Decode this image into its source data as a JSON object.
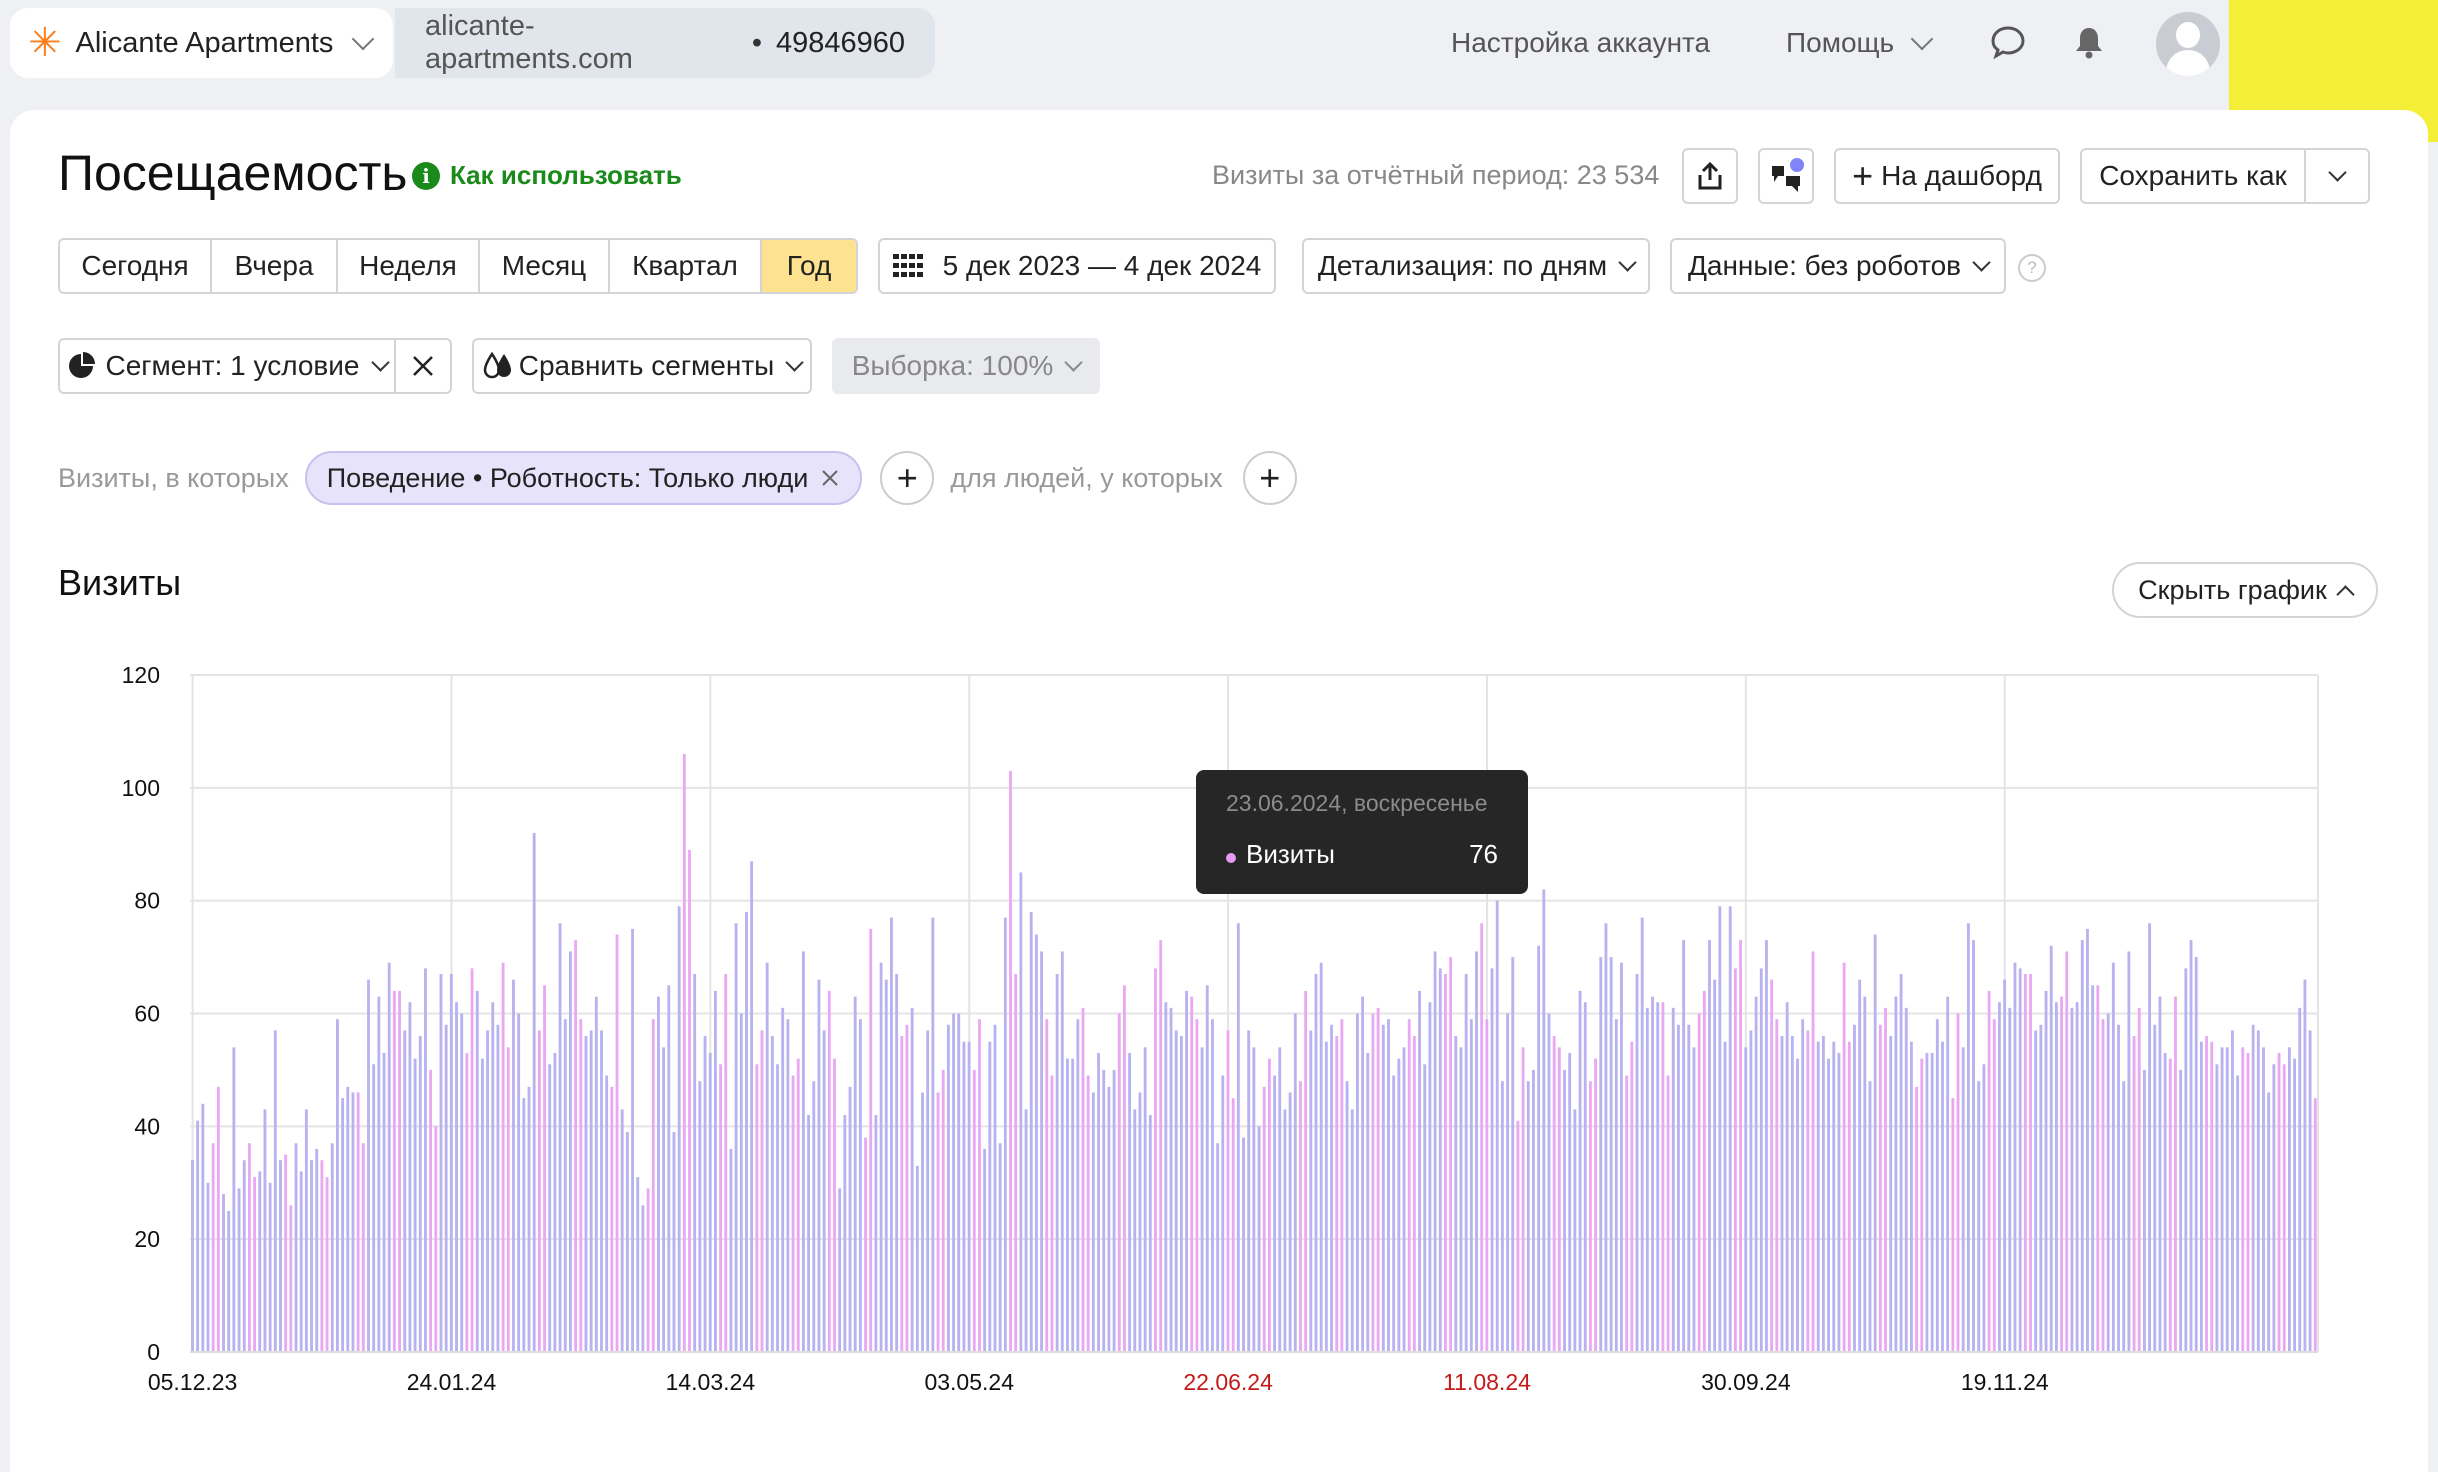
{
  "header": {
    "site_name": "Alicante Apartments",
    "site_domain": "alicante-apartments.com",
    "separator": "•",
    "counter_id": "49846960",
    "account_settings": "Настройка аккаунта",
    "help": "Помощь"
  },
  "page": {
    "title": "Посещаемость",
    "howto": "Как использовать",
    "howto_icon": "i",
    "visits_total": "Визиты за отчётный период: 23 534",
    "to_dashboard": "На дашборд",
    "save_as": "Сохранить как"
  },
  "periods": [
    {
      "label": "Сегодня",
      "active": false
    },
    {
      "label": "Вчера",
      "active": false
    },
    {
      "label": "Неделя",
      "active": false
    },
    {
      "label": "Месяц",
      "active": false
    },
    {
      "label": "Квартал",
      "active": false
    },
    {
      "label": "Год",
      "active": true
    }
  ],
  "filters": {
    "date_range": "5 дек 2023 — 4 дек 2024",
    "detail": "Детализация: по дням",
    "data": "Данные: без роботов",
    "help_mark": "?",
    "segment": "Сегмент: 1 условие",
    "compare": "Сравнить сегменты",
    "sample": "Выборка: 100%"
  },
  "conditions": {
    "prefix": "Визиты, в которых",
    "chip": "Поведение • Роботность: Только люди",
    "people_prefix": "для людей, у которых"
  },
  "section": {
    "title": "Визиты",
    "hide_chart": "Скрыть график"
  },
  "tooltip": {
    "date": "23.06.2024, воскресенье",
    "metric": "Визиты",
    "value": "76"
  },
  "colors": {
    "weekday_bar": "#b8b2f0",
    "weekend_bar": "#eaa8f2",
    "accent_yellow": "#fde38f",
    "weekend_tick": "#c41a1a"
  },
  "chart_data": {
    "type": "bar",
    "title": "Визиты",
    "x_start": "05.12.23",
    "x_end": "03.12.24",
    "x_tick_labels": [
      "05.12.23",
      "24.01.24",
      "14.03.24",
      "03.05.24",
      "22.06.24",
      "11.08.24",
      "30.09.24",
      "19.11.24"
    ],
    "weekend_tick_labels": [
      "22.06.24",
      "11.08.24"
    ],
    "ylim": [
      0,
      120
    ],
    "y_ticks": [
      0,
      20,
      40,
      60,
      80,
      100,
      120
    ],
    "series": [
      {
        "name": "Визиты",
        "values": [
          34,
          41,
          44,
          30,
          37,
          47,
          28,
          25,
          54,
          29,
          34,
          37,
          31,
          32,
          43,
          30,
          57,
          34,
          35,
          26,
          37,
          32,
          43,
          34,
          36,
          34,
          31,
          37,
          59,
          45,
          47,
          46,
          46,
          37,
          66,
          51,
          63,
          53,
          69,
          64,
          64,
          57,
          62,
          52,
          56,
          68,
          50,
          40,
          67,
          58,
          67,
          62,
          60,
          53,
          68,
          64,
          52,
          57,
          62,
          58,
          69,
          54,
          66,
          60,
          45,
          47,
          92,
          57,
          65,
          51,
          53,
          76,
          59,
          71,
          73,
          59,
          56,
          57,
          63,
          57,
          49,
          47,
          74,
          43,
          39,
          75,
          31,
          26,
          29,
          59,
          63,
          54,
          65,
          39,
          79,
          106,
          89,
          67,
          48,
          56,
          53,
          64,
          51,
          67,
          36,
          76,
          60,
          78,
          87,
          51,
          57,
          69,
          56,
          51,
          61,
          59,
          49,
          52,
          71,
          42,
          48,
          66,
          57,
          64,
          52,
          29,
          42,
          47,
          63,
          59,
          38,
          75,
          42,
          69,
          66,
          77,
          67,
          56,
          58,
          61,
          33,
          46,
          57,
          77,
          46,
          50,
          58,
          60,
          60,
          55,
          55,
          50,
          59,
          36,
          55,
          58,
          37,
          77,
          103,
          67,
          85,
          43,
          78,
          74,
          71,
          59,
          49,
          67,
          71,
          52,
          52,
          59,
          61,
          49,
          46,
          53,
          50,
          47,
          50,
          60,
          65,
          53,
          43,
          46,
          54,
          42,
          68,
          73,
          62,
          61,
          57,
          56,
          64,
          63,
          59,
          54,
          65,
          59,
          37,
          49,
          57,
          45,
          76,
          38,
          57,
          54,
          40,
          47,
          52,
          49,
          54,
          43,
          46,
          60,
          48,
          64,
          57,
          67,
          69,
          55,
          58,
          56,
          59,
          48,
          43,
          60,
          63,
          53,
          60,
          61,
          58,
          59,
          49,
          52,
          54,
          59,
          56,
          64,
          51,
          62,
          71,
          68,
          67,
          70,
          56,
          54,
          67,
          59,
          71,
          76,
          59,
          68,
          80,
          48,
          60,
          70,
          41,
          54,
          48,
          50,
          72,
          82,
          60,
          56,
          54,
          50,
          53,
          43,
          64,
          62,
          48,
          52,
          70,
          76,
          70,
          59,
          69,
          49,
          55,
          67,
          77,
          61,
          63,
          62,
          62,
          49,
          61,
          58,
          73,
          58,
          54,
          60,
          64,
          73,
          66,
          79,
          55,
          79,
          68,
          73,
          54,
          57,
          63,
          68,
          73,
          66,
          59,
          56,
          62,
          56,
          52,
          59,
          57,
          71,
          55,
          56,
          52,
          55,
          53,
          69,
          55,
          58,
          66,
          63,
          48,
          74,
          58,
          61,
          56,
          63,
          67,
          61,
          55,
          47,
          52,
          53,
          53,
          59,
          55,
          63,
          45,
          60,
          54,
          76,
          73,
          48,
          51,
          64,
          59,
          62,
          66,
          61,
          69,
          68,
          67,
          67,
          57,
          58,
          64,
          72,
          62,
          63,
          71,
          61,
          62,
          73,
          75,
          65,
          65,
          59,
          60,
          69,
          58,
          48,
          71,
          56,
          61,
          50,
          76,
          58,
          63,
          53,
          52,
          63,
          50,
          68,
          73,
          70,
          55,
          56,
          55,
          51,
          54,
          54,
          57,
          49,
          54,
          53,
          58,
          57,
          54,
          46,
          51,
          53,
          51,
          54,
          52,
          61,
          66,
          57,
          45
        ]
      }
    ],
    "weekend_series_color": "#eaa8f2",
    "highlighted_point": {
      "x": "23.06.2024",
      "value": 76
    }
  }
}
